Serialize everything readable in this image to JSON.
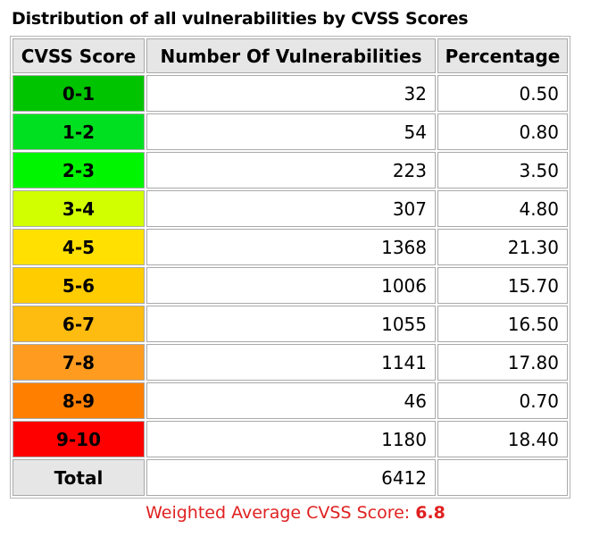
{
  "title": "Distribution of all vulnerabilities by CVSS Scores",
  "table": {
    "headers": [
      "CVSS Score",
      "Number Of Vulnerabilities",
      "Percentage"
    ],
    "rows": [
      {
        "score": "0-1",
        "count": "32",
        "percentage": "0.50",
        "color": "#00c400"
      },
      {
        "score": "1-2",
        "count": "54",
        "percentage": "0.80",
        "color": "#00e020"
      },
      {
        "score": "2-3",
        "count": "223",
        "percentage": "3.50",
        "color": "#00f500"
      },
      {
        "score": "3-4",
        "count": "307",
        "percentage": "4.80",
        "color": "#d1ff00"
      },
      {
        "score": "4-5",
        "count": "1368",
        "percentage": "21.30",
        "color": "#ffe000"
      },
      {
        "score": "5-6",
        "count": "1006",
        "percentage": "15.70",
        "color": "#ffcc00"
      },
      {
        "score": "6-7",
        "count": "1055",
        "percentage": "16.50",
        "color": "#ffbc10"
      },
      {
        "score": "7-8",
        "count": "1141",
        "percentage": "17.80",
        "color": "#ff9c20"
      },
      {
        "score": "8-9",
        "count": "46",
        "percentage": "0.70",
        "color": "#ff8000"
      },
      {
        "score": "9-10",
        "count": "1180",
        "percentage": "18.40",
        "color": "#ff0000"
      }
    ],
    "total": {
      "label": "Total",
      "count": "6412",
      "percentage": ""
    }
  },
  "weighted": {
    "label": "Weighted Average CVSS Score:",
    "value": "6.8"
  },
  "chart_data": {
    "type": "table",
    "title": "Distribution of all vulnerabilities by CVSS Scores",
    "columns": [
      "CVSS Score",
      "Number Of Vulnerabilities",
      "Percentage"
    ],
    "categories": [
      "0-1",
      "1-2",
      "2-3",
      "3-4",
      "4-5",
      "5-6",
      "6-7",
      "7-8",
      "8-9",
      "9-10"
    ],
    "series": [
      {
        "name": "Number Of Vulnerabilities",
        "values": [
          32,
          54,
          223,
          307,
          1368,
          1006,
          1055,
          1141,
          46,
          1180
        ]
      },
      {
        "name": "Percentage",
        "values": [
          0.5,
          0.8,
          3.5,
          4.8,
          21.3,
          15.7,
          16.5,
          17.8,
          0.7,
          18.4
        ]
      }
    ],
    "total": 6412,
    "weighted_average_cvss_score": 6.8
  }
}
